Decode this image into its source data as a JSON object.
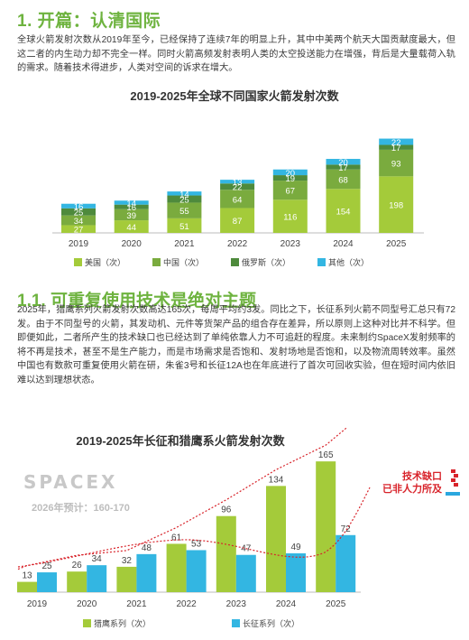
{
  "section1": {
    "title": "1. 开篇：认清国际",
    "paragraph": "全球火箭发射次数从2019年至今，已经保持了连续7年的明显上升，其中中美两个航天大国贡献度最大，但这二者的内生动力却不完全一样。同时火箭高频发射表明人类的太空投送能力在增强，背后是大量载荷入轨的需求。随着技术得进步，人类对空间的诉求在增大。"
  },
  "chart1_title": "2019-2025年全球不同国家火箭发射次数",
  "section2": {
    "title": "1.1. 可重复使用技术是绝对主题",
    "paragraph": "2025年，猎鹰系列火箭发射次数高达165次，每周平均约3发。同比之下，长征系列火箭不同型号汇总只有72发。由于不同型号的火箭，其发动机、元件等货架产品的组合存在差异，所以原则上这种对比并不科学。但即便如此，二者所产生的技术缺口也已经达到了单纯依靠人力不可追赶的程度。未来制约SpaceX发射频率的将不再是技术，甚至不是生产能力，而是市场需求是否饱和、发射场地是否饱和，以及物流周转效率。虽然中国也有数款可重复使用火箭在研，朱雀3号和长征12A也在年底进行了首次可回收实验，但在短时间内依旧难以达到理想状态。"
  },
  "chart2_title": "2019-2025年长征和猎鹰系火箭发射次数",
  "spacex_logo": "SPACEX",
  "forecast_2026": "2026年预计：160-170",
  "gap_note_line1": "技术缺口",
  "gap_note_line2": "已非人力所及",
  "chart_data": [
    {
      "type": "bar",
      "stacked": true,
      "title": "2019-2025年全球不同国家火箭发射次数",
      "categories": [
        "2019",
        "2020",
        "2021",
        "2022",
        "2023",
        "2024",
        "2025"
      ],
      "series": [
        {
          "name": "美国（次）",
          "color": "#a4cb3a",
          "values": [
            27,
            44,
            51,
            87,
            116,
            154,
            198
          ]
        },
        {
          "name": "中国（次）",
          "color": "#7aab3e",
          "values": [
            34,
            39,
            55,
            64,
            67,
            68,
            93
          ]
        },
        {
          "name": "俄罗斯（次）",
          "color": "#4e8a3c",
          "values": [
            25,
            16,
            25,
            22,
            19,
            17,
            17
          ]
        },
        {
          "name": "其他（次）",
          "color": "#33b6e2",
          "values": [
            16,
            14,
            14,
            13,
            20,
            20,
            22
          ]
        }
      ]
    },
    {
      "type": "bar",
      "title": "2019-2025年长征和猎鹰系火箭发射次数",
      "categories": [
        "2019",
        "2020",
        "2021",
        "2022",
        "2023",
        "2024",
        "2025"
      ],
      "series": [
        {
          "name": "猎鹰系列（次）",
          "color": "#a4cb3a",
          "values": [
            13,
            26,
            32,
            61,
            96,
            134,
            165
          ]
        },
        {
          "name": "长征系列（次）",
          "color": "#33b6e2",
          "values": [
            25,
            34,
            48,
            53,
            47,
            49,
            72
          ]
        }
      ],
      "trendlines": true
    }
  ]
}
